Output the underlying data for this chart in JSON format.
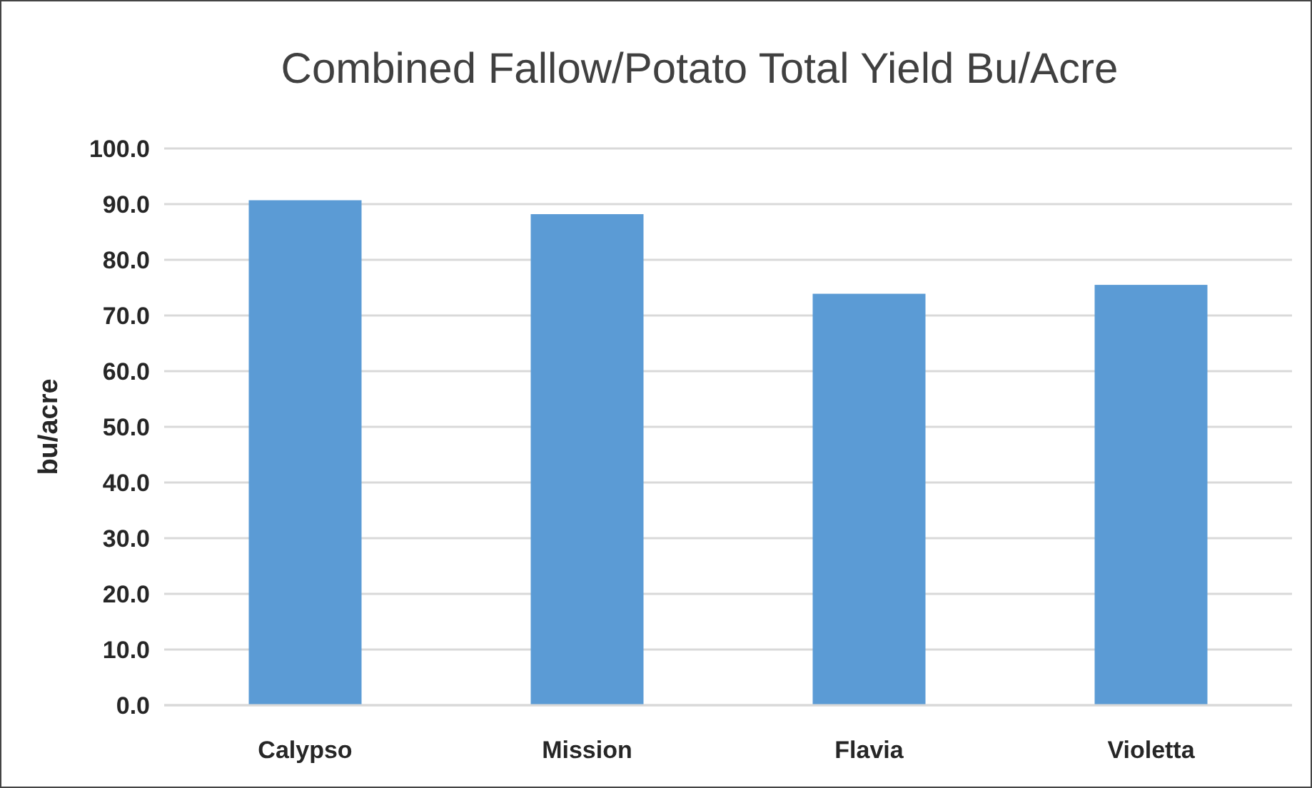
{
  "chart_data": {
    "type": "bar",
    "title": "Combined Fallow/Potato Total Yield Bu/Acre",
    "ylabel": "bu/acre",
    "categories": [
      "Calypso",
      "Mission",
      "Flavia",
      "Violetta"
    ],
    "values": [
      90.7,
      88.2,
      73.9,
      75.5
    ],
    "color": "#5b9bd5",
    "ylim": [
      0,
      100
    ],
    "yticks": [
      {
        "value": 0,
        "label": "0.0"
      },
      {
        "value": 10,
        "label": "10.0"
      },
      {
        "value": 20,
        "label": "20.0"
      },
      {
        "value": 30,
        "label": "30.0"
      },
      {
        "value": 40,
        "label": "40.0"
      },
      {
        "value": 50,
        "label": "50.0"
      },
      {
        "value": 60,
        "label": "60.0"
      },
      {
        "value": 70,
        "label": "70.0"
      },
      {
        "value": 80,
        "label": "80.0"
      },
      {
        "value": 90,
        "label": "90.0"
      },
      {
        "value": 100,
        "label": "100.0"
      }
    ],
    "grid": "y"
  }
}
